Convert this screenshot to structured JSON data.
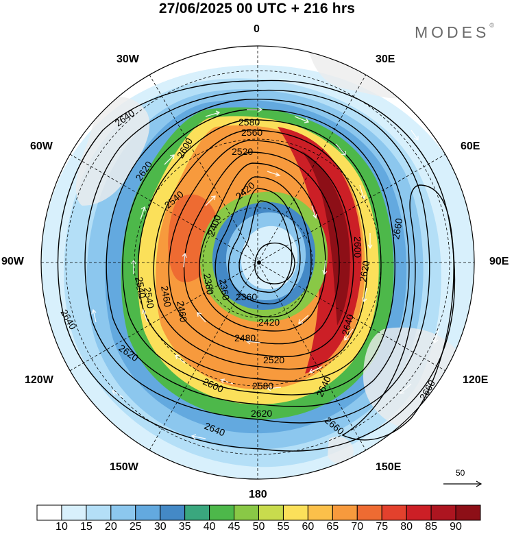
{
  "title": "27/06/2025  00 UTC  + 216 hrs",
  "brand": {
    "text": "MODES",
    "mark": "©"
  },
  "longitude_labels": {
    "top": "0",
    "bottom": "180",
    "left": "90W",
    "right": "90E",
    "upper_left_30": "30W",
    "upper_left_60": "60W",
    "upper_right_30": "30E",
    "upper_right_60": "60E",
    "lower_left_120": "120W",
    "lower_left_150": "150W",
    "lower_right_120": "120E",
    "lower_right_150": "150E"
  },
  "contour_labels": {
    "c2640_a": "2640",
    "c2620_a": "2620",
    "c2600_a": "2600",
    "c2580_a": "2580",
    "c2560_a": "2560",
    "c2520_a": "2520",
    "c2540_a": "2540",
    "c2420_a": "2420",
    "c2400_a": "2400",
    "c2380_a": "2380",
    "c2360_a": "2360",
    "c2480_a": "2480",
    "c2460_a": "2460",
    "c2540_b": "2540",
    "c2520_b": "2520",
    "c2580_b": "2580",
    "c2600_b": "2600",
    "c2620_b": "2620",
    "c2640_b": "2640",
    "c2660_a": "2660",
    "c2660_b": "2660",
    "c2660_c": "2660",
    "c2640_c": "2640",
    "c2620_c": "2620",
    "c2640_d": "2640",
    "c2600_c": "2600",
    "c2620_d": "2620",
    "c2540_c": "2540",
    "c2460_b": "2460",
    "c2420_b": "2420",
    "c2360_b": "2360",
    "c2640_e": "2640"
  },
  "scale": {
    "value": "50"
  },
  "colorbar": {
    "ticks": [
      "10",
      "15",
      "20",
      "25",
      "30",
      "35",
      "40",
      "45",
      "50",
      "55",
      "60",
      "65",
      "70",
      "75",
      "80",
      "85",
      "90"
    ],
    "colors": [
      "#ffffff",
      "#d8f0fc",
      "#b4dff7",
      "#8cc7ee",
      "#63a9df",
      "#4489c6",
      "#3aa77e",
      "#4db84a",
      "#89c846",
      "#c8db4d",
      "#fbe05a",
      "#fbc04a",
      "#f79a3d",
      "#ee6b32",
      "#e3412d",
      "#cc1f26",
      "#ad1520",
      "#8d0f17"
    ]
  },
  "colors": {
    "ocean": "#ffffff",
    "land": "#ececec",
    "contour": "#000000",
    "arrow": "#ffffff"
  }
}
